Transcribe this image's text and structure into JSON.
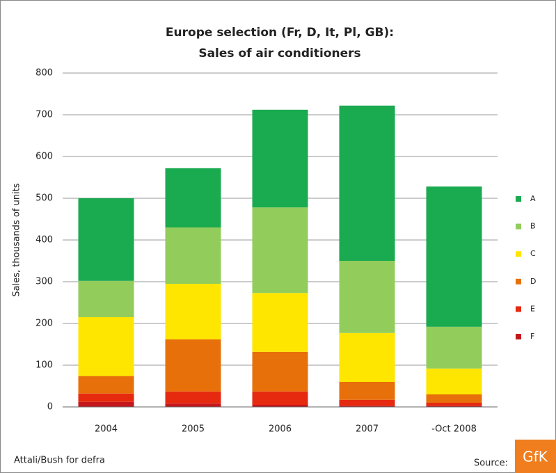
{
  "chart_data": {
    "type": "stacked_bar",
    "title": "Europe selection (Fr, D, It, Pl, GB):",
    "subtitle": "Sales of air conditioners",
    "y_label": "Sales, thousands of units",
    "categories": [
      "2004",
      "2005",
      "2006",
      "2007",
      "-Oct 2008"
    ],
    "series": [
      {
        "name": "F",
        "color": "#c4161c",
        "values": [
          12,
          8,
          5,
          3,
          3
        ]
      },
      {
        "name": "E",
        "color": "#e52a10",
        "values": [
          20,
          29,
          32,
          14,
          7
        ]
      },
      {
        "name": "D",
        "color": "#e8700a",
        "values": [
          42,
          125,
          95,
          43,
          20
        ]
      },
      {
        "name": "C",
        "color": "#ffe600",
        "values": [
          141,
          133,
          141,
          117,
          62
        ]
      },
      {
        "name": "B",
        "color": "#92cd5c",
        "values": [
          87,
          135,
          205,
          173,
          100
        ]
      },
      {
        "name": "A",
        "color": "#1aaa50",
        "values": [
          198,
          142,
          234,
          372,
          336
        ]
      }
    ],
    "ylim": [
      0,
      800
    ],
    "yticks": [
      0,
      100,
      200,
      300,
      400,
      500,
      600,
      700,
      800
    ],
    "grid": true,
    "legend": "right"
  },
  "footer": {
    "credit": "Attali/Bush for defra",
    "source": "Source:",
    "logo": "GfK"
  }
}
